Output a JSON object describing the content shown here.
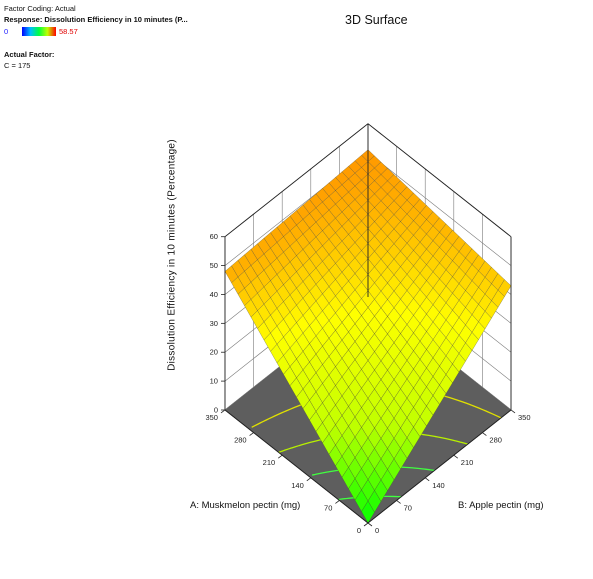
{
  "legend": {
    "factor_coding": "Factor Coding: Actual",
    "response": "Response: Dissolution Efficiency in 10 minutes  (P...",
    "min_value": "0",
    "max_value": "58.57",
    "actual_factor_heading": "Actual Factor:",
    "actual_factor_value": "C = 175"
  },
  "chart_data": {
    "type": "surface",
    "title": "3D Surface",
    "zlabel": "Dissolution Efficiency in 10 minutes  (Percentage)",
    "xlabel": "A: Muskmelon pectin (mg)",
    "ylabel": "B: Apple pectin (mg)",
    "x_ticks": [
      "0",
      "70",
      "140",
      "210",
      "280",
      "350"
    ],
    "y_ticks": [
      "0",
      "70",
      "140",
      "210",
      "280",
      "350"
    ],
    "z_ticks": [
      "0",
      "10",
      "20",
      "30",
      "40",
      "50",
      "60"
    ],
    "xlim": [
      0,
      350
    ],
    "ylim": [
      0,
      350
    ],
    "zlim": [
      0,
      60
    ],
    "corner_values": {
      "A0_B0": 0,
      "A350_B0": 48,
      "A0_B350": 43,
      "A350_B350": 51
    },
    "colormap": [
      "#00ff00",
      "#c0ff00",
      "#ffff00",
      "#ff9000"
    ],
    "contour_levels": [
      10,
      20,
      30,
      40
    ]
  }
}
